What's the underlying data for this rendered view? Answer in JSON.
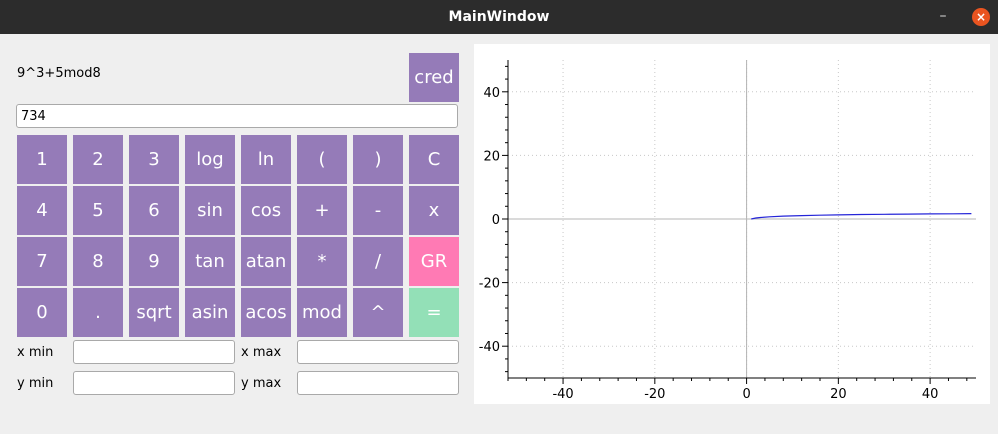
{
  "window": {
    "title": "MainWindow",
    "minimize_icon": "minimize-icon",
    "close_icon": "close-icon"
  },
  "calculator": {
    "expression": "9^3+5mod8",
    "result": "734",
    "cred_label": "cred",
    "keys": [
      [
        "1",
        "2",
        "3",
        "log",
        "ln",
        "(",
        ")",
        "C"
      ],
      [
        "4",
        "5",
        "6",
        "sin",
        "cos",
        "+",
        "-",
        "x"
      ],
      [
        "7",
        "8",
        "9",
        "tan",
        "atan",
        "*",
        "/",
        "GR"
      ],
      [
        "0",
        ".",
        "sqrt",
        "asin",
        "acos",
        "mod",
        "^",
        "="
      ]
    ],
    "accent_colors": {
      "key": "#957bb8",
      "graph": "#ff7ab4",
      "equals": "#93e0b7"
    }
  },
  "range": {
    "x_min_label": "x min",
    "x_max_label": "x max",
    "y_min_label": "y min",
    "y_max_label": "y max",
    "x_min_value": "",
    "x_max_value": "",
    "y_min_value": "",
    "y_max_value": ""
  },
  "chart_data": {
    "type": "line",
    "title": "",
    "xlabel": "",
    "ylabel": "",
    "xlim": [
      -52,
      50
    ],
    "ylim": [
      -50,
      50
    ],
    "x_ticks": [
      -40,
      -20,
      0,
      20,
      40
    ],
    "y_ticks": [
      -40,
      -20,
      0,
      20,
      40
    ],
    "grid": true,
    "series": [
      {
        "color": "#2525d8",
        "x": [
          1,
          2,
          3,
          5,
          8,
          12,
          16,
          20,
          25,
          30,
          35,
          40,
          45,
          49
        ],
        "y": [
          0.0,
          0.3,
          0.48,
          0.7,
          0.9,
          1.08,
          1.2,
          1.3,
          1.4,
          1.48,
          1.54,
          1.6,
          1.65,
          1.69
        ]
      }
    ]
  }
}
